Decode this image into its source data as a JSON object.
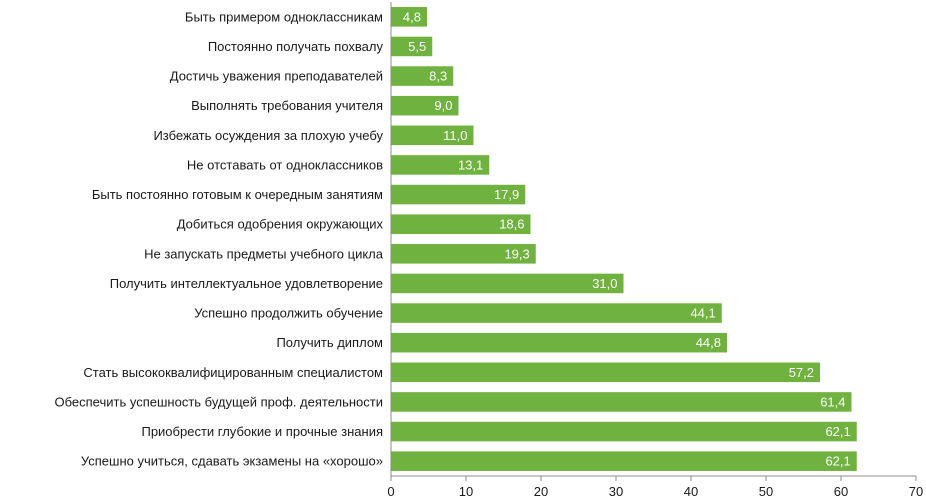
{
  "chart_data": {
    "type": "bar",
    "orientation": "horizontal",
    "title": "",
    "xlabel": "",
    "ylabel": "",
    "xlim": [
      0,
      70
    ],
    "xticks": [
      0,
      10,
      20,
      30,
      40,
      50,
      60,
      70
    ],
    "grid": false,
    "bar_color": "#6fb23f",
    "categories": [
      "Быть примером одноклассникам",
      "Постоянно получать похвалу",
      "Достичь уважения преподавателей",
      "Выполнять требования учителя",
      "Избежать осуждения за плохую учебу",
      "Не отставать от одноклассников",
      "Быть постоянно готовым к очередным занятиям",
      "Добиться одобрения окружающих",
      "Не запускать предметы учебного цикла",
      "Получить интеллектуальное удовлетворение",
      "Успешно продолжить обучение",
      "Получить диплом",
      "Стать высококвалифицированным специалистом",
      "Обеспечить успешность будущей проф. деятельности",
      "Приобрести глубокие и прочные знания",
      "Успешно учиться, сдавать экзамены на «хорошо»"
    ],
    "values": [
      4.8,
      5.5,
      8.3,
      9.0,
      11.0,
      13.1,
      17.9,
      18.6,
      19.3,
      31.0,
      44.1,
      44.8,
      57.2,
      61.4,
      62.1,
      62.1
    ],
    "value_labels": [
      "4,8",
      "5,5",
      "8,3",
      "9,0",
      "11,0",
      "13,1",
      "17,9",
      "18,6",
      "19,3",
      "31,0",
      "44,1",
      "44,8",
      "57,2",
      "61,4",
      "62,1",
      "62,1"
    ]
  }
}
